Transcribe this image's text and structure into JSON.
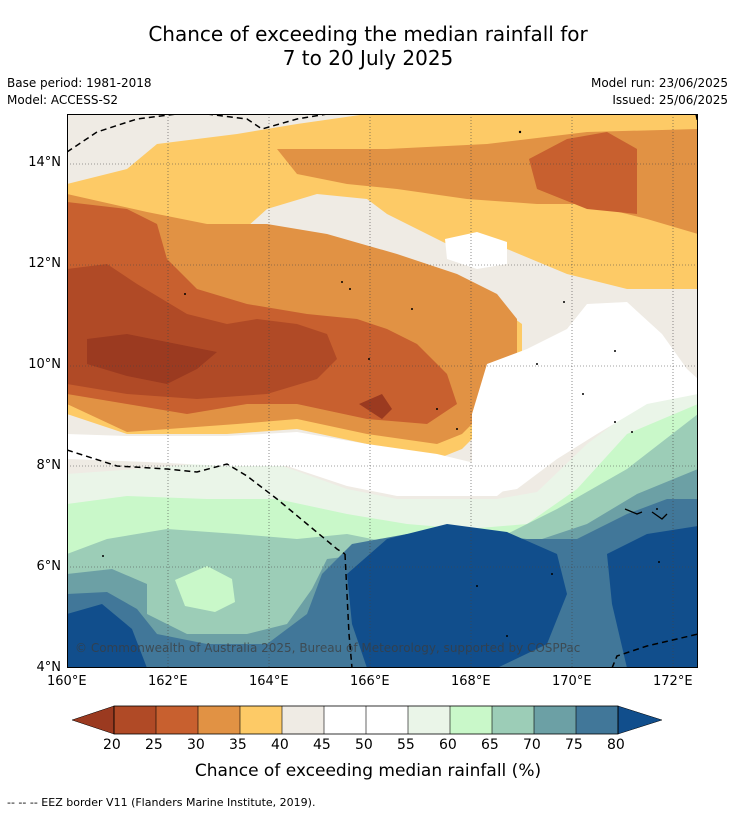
{
  "title": {
    "line1": "Chance of exceeding the median rainfall for",
    "line2": "7 to 20 July 2025"
  },
  "meta": {
    "base_period": "Base period: 1981-2018",
    "model": "Model: ACCESS-S2",
    "model_run": "Model run: 23/06/2025",
    "issued": "Issued: 25/06/2025"
  },
  "map": {
    "lat_ticks": [
      "14°N",
      "12°N",
      "10°N",
      "8°N",
      "6°N",
      "4°N"
    ],
    "lon_ticks": [
      "160°E",
      "162°E",
      "164°E",
      "166°E",
      "168°E",
      "170°E",
      "172°E"
    ],
    "copyright": "© Commonwealth of Australia 2025, Bureau of Meteorology, supported by COSPPac"
  },
  "colorbar": {
    "ticks": [
      "20",
      "25",
      "30",
      "35",
      "40",
      "45",
      "50",
      "55",
      "60",
      "65",
      "70",
      "75",
      "80"
    ],
    "label": "Chance of exceeding median rainfall (%)",
    "colors": {
      "below20": "#9b3a20",
      "c20_25": "#b04a26",
      "c25_30": "#c8602f",
      "c30_35": "#e19244",
      "c35_40": "#fdca66",
      "c40_45": "#efebe4",
      "c45_50": "#ffffff",
      "c50_55": "#ffffff",
      "c55_60": "#eaf5e8",
      "c60_65": "#c9f8c9",
      "c65_70": "#9ccdb7",
      "c70_75": "#6ca0a5",
      "c75_80": "#417799",
      "above80": "#114e8c"
    }
  },
  "footer": {
    "legend": "-- -- -- EEZ border V11 (Flanders Marine Institute, 2019)."
  }
}
